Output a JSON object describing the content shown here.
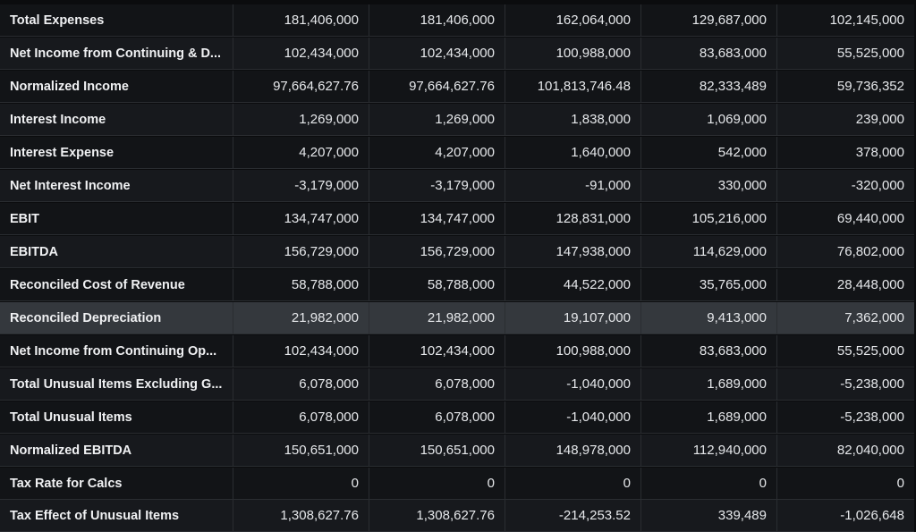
{
  "financials": {
    "rows": [
      {
        "label": "Total Expenses",
        "values": [
          "181,406,000",
          "181,406,000",
          "162,064,000",
          "129,687,000",
          "102,145,000"
        ]
      },
      {
        "label": "Net Income from Continuing & D...",
        "values": [
          "102,434,000",
          "102,434,000",
          "100,988,000",
          "83,683,000",
          "55,525,000"
        ]
      },
      {
        "label": "Normalized Income",
        "values": [
          "97,664,627.76",
          "97,664,627.76",
          "101,813,746.48",
          "82,333,489",
          "59,736,352"
        ]
      },
      {
        "label": "Interest Income",
        "values": [
          "1,269,000",
          "1,269,000",
          "1,838,000",
          "1,069,000",
          "239,000"
        ]
      },
      {
        "label": "Interest Expense",
        "values": [
          "4,207,000",
          "4,207,000",
          "1,640,000",
          "542,000",
          "378,000"
        ]
      },
      {
        "label": "Net Interest Income",
        "values": [
          "-3,179,000",
          "-3,179,000",
          "-91,000",
          "330,000",
          "-320,000"
        ]
      },
      {
        "label": "EBIT",
        "values": [
          "134,747,000",
          "134,747,000",
          "128,831,000",
          "105,216,000",
          "69,440,000"
        ]
      },
      {
        "label": "EBITDA",
        "values": [
          "156,729,000",
          "156,729,000",
          "147,938,000",
          "114,629,000",
          "76,802,000"
        ]
      },
      {
        "label": "Reconciled Cost of Revenue",
        "values": [
          "58,788,000",
          "58,788,000",
          "44,522,000",
          "35,765,000",
          "28,448,000"
        ]
      },
      {
        "label": "Reconciled Depreciation",
        "values": [
          "21,982,000",
          "21,982,000",
          "19,107,000",
          "9,413,000",
          "7,362,000"
        ],
        "highlighted": true
      },
      {
        "label": "Net Income from Continuing Op...",
        "values": [
          "102,434,000",
          "102,434,000",
          "100,988,000",
          "83,683,000",
          "55,525,000"
        ]
      },
      {
        "label": "Total Unusual Items Excluding G...",
        "values": [
          "6,078,000",
          "6,078,000",
          "-1,040,000",
          "1,689,000",
          "-5,238,000"
        ]
      },
      {
        "label": "Total Unusual Items",
        "values": [
          "6,078,000",
          "6,078,000",
          "-1,040,000",
          "1,689,000",
          "-5,238,000"
        ]
      },
      {
        "label": "Normalized EBITDA",
        "values": [
          "150,651,000",
          "150,651,000",
          "148,978,000",
          "112,940,000",
          "82,040,000"
        ]
      },
      {
        "label": "Tax Rate for Calcs",
        "values": [
          "0",
          "0",
          "0",
          "0",
          "0"
        ]
      },
      {
        "label": "Tax Effect of Unusual Items",
        "values": [
          "1,308,627.76",
          "1,308,627.76",
          "-214,253.52",
          "339,489",
          "-1,026,648"
        ]
      }
    ]
  }
}
